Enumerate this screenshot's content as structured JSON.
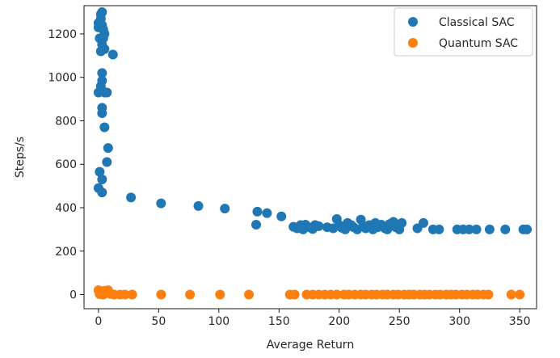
{
  "chart_data": {
    "type": "scatter",
    "xlabel": "Average Return",
    "ylabel": "Steps/s",
    "xlim": [
      -12,
      364
    ],
    "ylim": [
      -65,
      1330
    ],
    "xticks": [
      0,
      50,
      100,
      150,
      200,
      250,
      300,
      350
    ],
    "yticks": [
      0,
      200,
      400,
      600,
      800,
      1000,
      1200
    ],
    "grid": false,
    "legend_position": "top-right",
    "series": [
      {
        "name": "Classical SAC",
        "color": "#1f77b4",
        "points": [
          [
            0,
            1250
          ],
          [
            0,
            1230
          ],
          [
            1,
            1180
          ],
          [
            2,
            1290
          ],
          [
            3,
            1300
          ],
          [
            2,
            1270
          ],
          [
            3,
            1240
          ],
          [
            4,
            1220
          ],
          [
            5,
            1200
          ],
          [
            4,
            1180
          ],
          [
            3,
            1150
          ],
          [
            5,
            1130
          ],
          [
            2,
            1120
          ],
          [
            12,
            1105
          ],
          [
            3,
            1020
          ],
          [
            3,
            985
          ],
          [
            2,
            960
          ],
          [
            2,
            945
          ],
          [
            0,
            930
          ],
          [
            5,
            930
          ],
          [
            7,
            930
          ],
          [
            3,
            860
          ],
          [
            3,
            835
          ],
          [
            5,
            770
          ],
          [
            8,
            675
          ],
          [
            7,
            610
          ],
          [
            1,
            565
          ],
          [
            3,
            530
          ],
          [
            0,
            490
          ],
          [
            3,
            470
          ],
          [
            27,
            447
          ],
          [
            52,
            420
          ],
          [
            83,
            408
          ],
          [
            105,
            396
          ],
          [
            132,
            382
          ],
          [
            140,
            375
          ],
          [
            152,
            360
          ],
          [
            131,
            322
          ],
          [
            162,
            312
          ],
          [
            165,
            305
          ],
          [
            168,
            320
          ],
          [
            170,
            300
          ],
          [
            172,
            322
          ],
          [
            175,
            310
          ],
          [
            178,
            302
          ],
          [
            180,
            320
          ],
          [
            183,
            315
          ],
          [
            190,
            310
          ],
          [
            195,
            305
          ],
          [
            198,
            348
          ],
          [
            200,
            320
          ],
          [
            202,
            308
          ],
          [
            205,
            300
          ],
          [
            207,
            330
          ],
          [
            210,
            320
          ],
          [
            212,
            310
          ],
          [
            215,
            300
          ],
          [
            218,
            345
          ],
          [
            220,
            315
          ],
          [
            222,
            305
          ],
          [
            225,
            320
          ],
          [
            228,
            300
          ],
          [
            230,
            330
          ],
          [
            232,
            310
          ],
          [
            235,
            322
          ],
          [
            238,
            305
          ],
          [
            240,
            300
          ],
          [
            242,
            325
          ],
          [
            245,
            335
          ],
          [
            247,
            310
          ],
          [
            250,
            300
          ],
          [
            252,
            330
          ],
          [
            265,
            305
          ],
          [
            270,
            330
          ],
          [
            278,
            300
          ],
          [
            283,
            300
          ],
          [
            298,
            300
          ],
          [
            303,
            300
          ],
          [
            308,
            300
          ],
          [
            314,
            300
          ],
          [
            325,
            300
          ],
          [
            338,
            300
          ],
          [
            353,
            300
          ],
          [
            356,
            300
          ]
        ]
      },
      {
        "name": "Quantum SAC",
        "color": "#ff7f0e",
        "points": [
          [
            0,
            20
          ],
          [
            1,
            2
          ],
          [
            2,
            15
          ],
          [
            3,
            5
          ],
          [
            4,
            0
          ],
          [
            5,
            18
          ],
          [
            6,
            8
          ],
          [
            8,
            20
          ],
          [
            10,
            3
          ],
          [
            13,
            0
          ],
          [
            18,
            0
          ],
          [
            22,
            0
          ],
          [
            28,
            0
          ],
          [
            52,
            0
          ],
          [
            76,
            0
          ],
          [
            101,
            0
          ],
          [
            125,
            0
          ],
          [
            159,
            0
          ],
          [
            163,
            0
          ],
          [
            173,
            0
          ],
          [
            178,
            0
          ],
          [
            183,
            0
          ],
          [
            188,
            0
          ],
          [
            193,
            0
          ],
          [
            198,
            0
          ],
          [
            204,
            0
          ],
          [
            208,
            0
          ],
          [
            213,
            0
          ],
          [
            218,
            0
          ],
          [
            222,
            0
          ],
          [
            227,
            0
          ],
          [
            231,
            0
          ],
          [
            236,
            0
          ],
          [
            240,
            0
          ],
          [
            245,
            0
          ],
          [
            249,
            0
          ],
          [
            254,
            0
          ],
          [
            258,
            0
          ],
          [
            262,
            0
          ],
          [
            267,
            0
          ],
          [
            271,
            0
          ],
          [
            275,
            0
          ],
          [
            280,
            0
          ],
          [
            284,
            0
          ],
          [
            289,
            0
          ],
          [
            293,
            0
          ],
          [
            297,
            0
          ],
          [
            302,
            0
          ],
          [
            306,
            0
          ],
          [
            311,
            0
          ],
          [
            315,
            0
          ],
          [
            320,
            0
          ],
          [
            324,
            0
          ],
          [
            343,
            0
          ],
          [
            350,
            0
          ]
        ]
      }
    ]
  }
}
